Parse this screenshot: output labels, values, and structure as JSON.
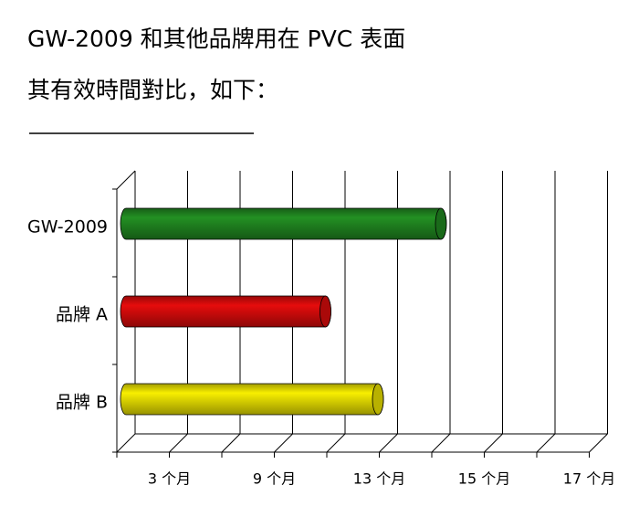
{
  "chart_data": {
    "type": "bar",
    "orientation": "horizontal",
    "title": "GW-2009 和其他品牌用在 PVC 表面",
    "subtitle": "其有效時間對比，如下：",
    "categories": [
      "GW-2009",
      "品牌 A",
      "品牌 B"
    ],
    "values": [
      6,
      3.8,
      4.8
    ],
    "colors": [
      "#1e7d1e",
      "#c80a0a",
      "#d8d000"
    ],
    "xlim": [
      0,
      9
    ],
    "xticks": [
      {
        "value": 1,
        "label": "3 个月"
      },
      {
        "value": 3,
        "label": "9 个月"
      },
      {
        "value": 5,
        "label": "13 个月"
      },
      {
        "value": 7,
        "label": "15 个月"
      },
      {
        "value": 9,
        "label": "17 个月"
      }
    ],
    "xminor": [
      0,
      2,
      4,
      6,
      8
    ],
    "grid": true
  }
}
